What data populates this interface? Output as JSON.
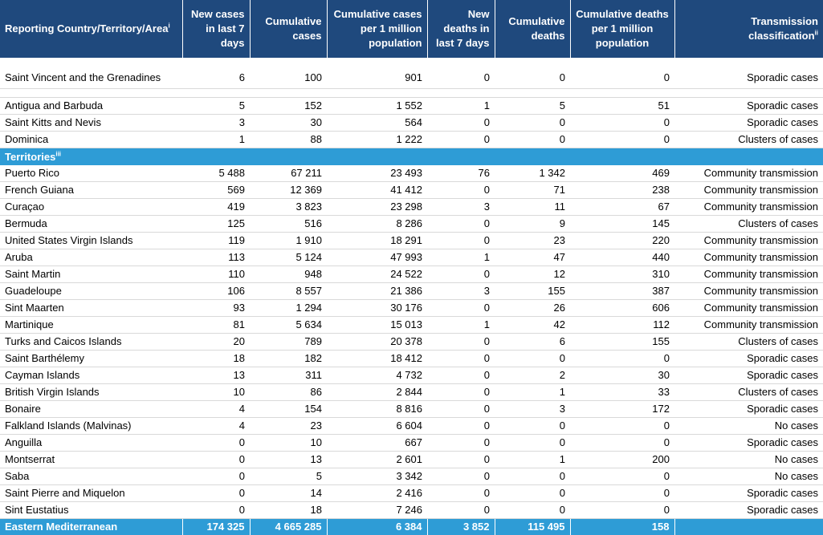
{
  "header": {
    "col1": "Reporting Country/Territory/Area",
    "col1_sup": "i",
    "col2": "New cases in last 7 days",
    "col3": "Cumulative cases",
    "col4": "Cumulative cases per 1 million population",
    "col5": "New deaths in last 7 days",
    "col6": "Cumulative deaths",
    "col7": "Cumulative deaths per 1 million population",
    "col8": "Transmission classification",
    "col8_sup": "ii"
  },
  "first_row": [
    "Saint Vincent and the Grenadines",
    "6",
    "100",
    "901",
    "0",
    "0",
    "0",
    "Sporadic cases"
  ],
  "countries": [
    [
      "Antigua and Barbuda",
      "5",
      "152",
      "1 552",
      "1",
      "5",
      "51",
      "Sporadic cases"
    ],
    [
      "Saint Kitts and Nevis",
      "3",
      "30",
      "564",
      "0",
      "0",
      "0",
      "Sporadic cases"
    ],
    [
      "Dominica",
      "1",
      "88",
      "1 222",
      "0",
      "0",
      "0",
      "Clusters of cases"
    ]
  ],
  "territories_label": "Territories",
  "territories_sup": "iii",
  "territories": [
    [
      "Puerto Rico",
      "5 488",
      "67 211",
      "23 493",
      "76",
      "1 342",
      "469",
      "Community transmission"
    ],
    [
      "French Guiana",
      "569",
      "12 369",
      "41 412",
      "0",
      "71",
      "238",
      "Community transmission"
    ],
    [
      "Curaçao",
      "419",
      "3 823",
      "23 298",
      "3",
      "11",
      "67",
      "Community transmission"
    ],
    [
      "Bermuda",
      "125",
      "516",
      "8 286",
      "0",
      "9",
      "145",
      "Clusters of cases"
    ],
    [
      "United States Virgin Islands",
      "119",
      "1 910",
      "18 291",
      "0",
      "23",
      "220",
      "Community transmission"
    ],
    [
      "Aruba",
      "113",
      "5 124",
      "47 993",
      "1",
      "47",
      "440",
      "Community transmission"
    ],
    [
      "Saint Martin",
      "110",
      "948",
      "24 522",
      "0",
      "12",
      "310",
      "Community transmission"
    ],
    [
      "Guadeloupe",
      "106",
      "8 557",
      "21 386",
      "3",
      "155",
      "387",
      "Community transmission"
    ],
    [
      "Sint Maarten",
      "93",
      "1 294",
      "30 176",
      "0",
      "26",
      "606",
      "Community transmission"
    ],
    [
      "Martinique",
      "81",
      "5 634",
      "15 013",
      "1",
      "42",
      "112",
      "Community transmission"
    ],
    [
      "Turks and Caicos Islands",
      "20",
      "789",
      "20 378",
      "0",
      "6",
      "155",
      "Clusters of cases"
    ],
    [
      "Saint Barthélemy",
      "18",
      "182",
      "18 412",
      "0",
      "0",
      "0",
      "Sporadic cases"
    ],
    [
      "Cayman Islands",
      "13",
      "311",
      "4 732",
      "0",
      "2",
      "30",
      "Sporadic cases"
    ],
    [
      "British Virgin Islands",
      "10",
      "86",
      "2 844",
      "0",
      "1",
      "33",
      "Clusters of cases"
    ],
    [
      "Bonaire",
      "4",
      "154",
      "8 816",
      "0",
      "3",
      "172",
      "Sporadic cases"
    ],
    [
      "Falkland Islands (Malvinas)",
      "4",
      "23",
      "6 604",
      "0",
      "0",
      "0",
      "No cases"
    ],
    [
      "Anguilla",
      "0",
      "10",
      "667",
      "0",
      "0",
      "0",
      "Sporadic cases"
    ],
    [
      "Montserrat",
      "0",
      "13",
      "2 601",
      "0",
      "1",
      "200",
      "No cases"
    ],
    [
      "Saba",
      "0",
      "5",
      "3 342",
      "0",
      "0",
      "0",
      "No cases"
    ],
    [
      "Saint Pierre and Miquelon",
      "0",
      "14",
      "2 416",
      "0",
      "0",
      "0",
      "Sporadic cases"
    ],
    [
      "Sint Eustatius",
      "0",
      "18",
      "7 246",
      "0",
      "0",
      "0",
      "Sporadic cases"
    ]
  ],
  "total_row": [
    "Eastern Mediterranean",
    "174 325",
    "4 665 285",
    "6 384",
    "3 852",
    "115 495",
    "158",
    ""
  ],
  "colors": {
    "header_bg": "#1f497d",
    "section_bg": "#2e9cd6",
    "text_light": "#ffffff"
  }
}
